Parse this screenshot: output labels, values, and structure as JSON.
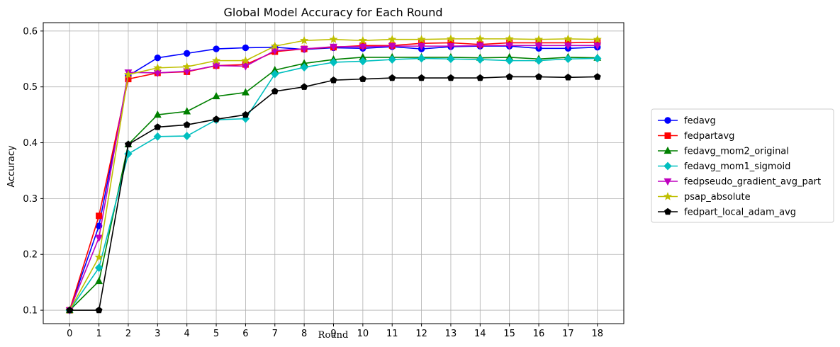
{
  "chart_data": {
    "type": "line",
    "title": "Global Model Accuracy for Each Round",
    "xlabel": "Round",
    "ylabel": "Accuracy",
    "x": [
      0,
      1,
      2,
      3,
      4,
      5,
      6,
      7,
      8,
      9,
      10,
      11,
      12,
      13,
      14,
      15,
      16,
      17,
      18
    ],
    "xlim": [
      -0.9,
      18.9
    ],
    "ylim": [
      0.076,
      0.615
    ],
    "yticks": [
      0.1,
      0.2,
      0.3,
      0.4,
      0.5,
      0.6
    ],
    "yticklabels": [
      "0.1",
      "0.2",
      "0.3",
      "0.4",
      "0.5",
      "0.6"
    ],
    "grid": true,
    "legend_position": "outside-right",
    "series": [
      {
        "name": "fedavg",
        "color": "#0000ff",
        "marker": "circle",
        "values": [
          0.1,
          0.251,
          0.52,
          0.552,
          0.56,
          0.568,
          0.57,
          0.571,
          0.567,
          0.57,
          0.569,
          0.572,
          0.568,
          0.572,
          0.573,
          0.573,
          0.569,
          0.569,
          0.571
        ]
      },
      {
        "name": "fedpartavg",
        "color": "#ff0000",
        "marker": "square",
        "values": [
          0.1,
          0.269,
          0.514,
          0.525,
          0.527,
          0.538,
          0.54,
          0.563,
          0.568,
          0.571,
          0.574,
          0.574,
          0.578,
          0.579,
          0.576,
          0.579,
          0.579,
          0.579,
          0.58
        ]
      },
      {
        "name": "fedavg_mom2_original",
        "color": "#008000",
        "marker": "triangle-up",
        "values": [
          0.1,
          0.152,
          0.397,
          0.45,
          0.456,
          0.483,
          0.49,
          0.53,
          0.542,
          0.549,
          0.553,
          0.553,
          0.553,
          0.553,
          0.552,
          0.553,
          0.55,
          0.553,
          0.552
        ]
      },
      {
        "name": "fedavg_mom1_sigmoid",
        "color": "#00bfbf",
        "marker": "diamond",
        "values": [
          0.1,
          0.176,
          0.38,
          0.411,
          0.412,
          0.441,
          0.443,
          0.523,
          0.535,
          0.544,
          0.546,
          0.549,
          0.551,
          0.55,
          0.549,
          0.547,
          0.547,
          0.55,
          0.551
        ]
      },
      {
        "name": "fedpseudo_gradient_avg_part",
        "color": "#bf00bf",
        "marker": "triangle-down",
        "values": [
          0.1,
          0.23,
          0.526,
          0.525,
          0.528,
          0.538,
          0.537,
          0.565,
          0.568,
          0.572,
          0.572,
          0.573,
          0.573,
          0.573,
          0.574,
          0.574,
          0.574,
          0.574,
          0.574
        ]
      },
      {
        "name": "psap_absolute",
        "color": "#bfbf00",
        "marker": "star",
        "values": [
          0.1,
          0.195,
          0.522,
          0.534,
          0.536,
          0.547,
          0.547,
          0.573,
          0.583,
          0.585,
          0.583,
          0.585,
          0.585,
          0.586,
          0.586,
          0.586,
          0.585,
          0.586,
          0.585
        ]
      },
      {
        "name": "fedpart_local_adam_avg",
        "color": "#000000",
        "marker": "pentagon",
        "values": [
          0.1,
          0.1,
          0.397,
          0.428,
          0.432,
          0.442,
          0.45,
          0.492,
          0.5,
          0.512,
          0.514,
          0.516,
          0.516,
          0.516,
          0.516,
          0.518,
          0.518,
          0.517,
          0.518
        ]
      }
    ]
  }
}
